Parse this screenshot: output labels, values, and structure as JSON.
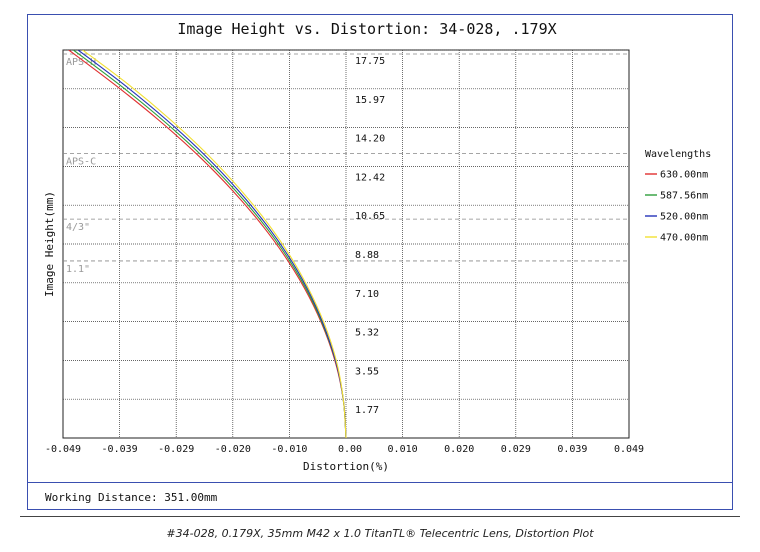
{
  "caption": "#34-028, 0.179X, 35mm M42 x 1.0 TitanTL® Telecentric Lens, Distortion Plot",
  "working_distance": "Working Distance: 351.00mm",
  "chart_data": {
    "type": "line",
    "title": "Image Height vs. Distortion: 34-028, .179X",
    "xlabel": "Distortion(%)",
    "ylabel": "Image Height(mm)",
    "xlim": [
      -0.049,
      0.049
    ],
    "ylim": [
      0,
      19.5
    ],
    "x_ticks": [
      "-0.049",
      "-0.039",
      "-0.029",
      "-0.020",
      "-0.010",
      "0.00",
      "0.010",
      "0.020",
      "0.029",
      "0.039",
      "0.049"
    ],
    "y_ticks": [
      "1.77",
      "3.55",
      "5.32",
      "7.10",
      "8.88",
      "10.65",
      "12.42",
      "14.20",
      "15.97",
      "17.75"
    ],
    "grid": true,
    "legend_title": "Wavelengths",
    "legend_position": "right",
    "sensor_lines": [
      {
        "label": "APS-H",
        "y": 19.3
      },
      {
        "label": "APS-C",
        "y": 14.3
      },
      {
        "label": "4/3\"",
        "y": 11.0
      },
      {
        "label": "1.1\"",
        "y": 8.9
      }
    ],
    "series": [
      {
        "name": "630.00nm",
        "color": "#e03030",
        "points": [
          [
            0.0,
            0
          ],
          [
            -0.0004,
            1.77
          ],
          [
            -0.0016,
            3.55
          ],
          [
            -0.0036,
            5.32
          ],
          [
            -0.0064,
            7.1
          ],
          [
            -0.01,
            8.88
          ],
          [
            -0.0144,
            10.65
          ],
          [
            -0.0196,
            12.42
          ],
          [
            -0.0256,
            14.2
          ],
          [
            -0.0324,
            15.97
          ],
          [
            -0.04,
            17.75
          ],
          [
            -0.048,
            19.5
          ]
        ]
      },
      {
        "name": "587.56nm",
        "color": "#2e9e3a",
        "points": [
          [
            0.0,
            0
          ],
          [
            -0.0004,
            1.77
          ],
          [
            -0.0015,
            3.55
          ],
          [
            -0.0035,
            5.32
          ],
          [
            -0.0062,
            7.1
          ],
          [
            -0.0097,
            8.88
          ],
          [
            -0.014,
            10.65
          ],
          [
            -0.0191,
            12.42
          ],
          [
            -0.025,
            14.2
          ],
          [
            -0.0317,
            15.97
          ],
          [
            -0.0392,
            17.75
          ],
          [
            -0.0472,
            19.5
          ]
        ]
      },
      {
        "name": "520.00nm",
        "color": "#2433b8",
        "points": [
          [
            0.0,
            0
          ],
          [
            -0.0004,
            1.77
          ],
          [
            -0.0015,
            3.55
          ],
          [
            -0.0034,
            5.32
          ],
          [
            -0.006,
            7.1
          ],
          [
            -0.0094,
            8.88
          ],
          [
            -0.0136,
            10.65
          ],
          [
            -0.0186,
            12.42
          ],
          [
            -0.0244,
            14.2
          ],
          [
            -0.031,
            15.97
          ],
          [
            -0.0384,
            17.75
          ],
          [
            -0.0464,
            19.5
          ]
        ]
      },
      {
        "name": "470.00nm",
        "color": "#f2e033",
        "points": [
          [
            0.0,
            0
          ],
          [
            -0.0004,
            1.77
          ],
          [
            -0.0014,
            3.55
          ],
          [
            -0.0032,
            5.32
          ],
          [
            -0.0058,
            7.1
          ],
          [
            -0.0091,
            8.88
          ],
          [
            -0.0132,
            10.65
          ],
          [
            -0.0181,
            12.42
          ],
          [
            -0.0238,
            14.2
          ],
          [
            -0.0303,
            15.97
          ],
          [
            -0.0376,
            17.75
          ],
          [
            -0.0456,
            19.5
          ]
        ]
      }
    ]
  }
}
